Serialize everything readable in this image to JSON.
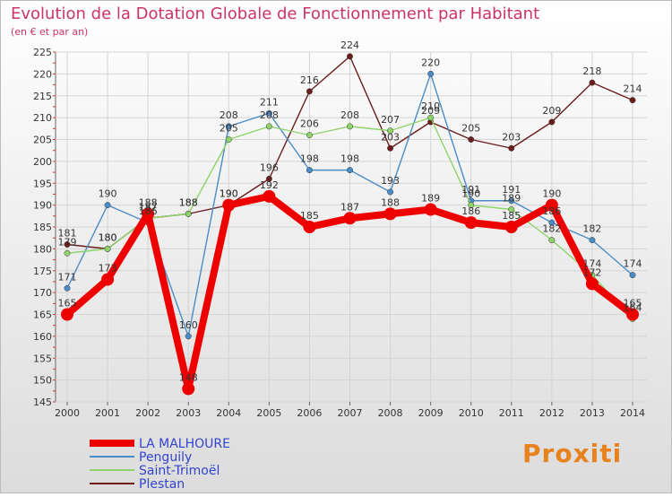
{
  "chart_data": {
    "type": "line",
    "title": "Evolution de la Dotation Globale de Fonctionnement par Habitant",
    "subtitle": "(en € et par an)",
    "xlabel": "",
    "ylabel": "",
    "ylim": [
      145,
      225
    ],
    "y_ticks": [
      145,
      150,
      155,
      160,
      165,
      170,
      175,
      180,
      185,
      190,
      195,
      200,
      205,
      210,
      215,
      220,
      225
    ],
    "categories": [
      "2000",
      "2001",
      "2002",
      "2003",
      "2004",
      "2005",
      "2006",
      "2007",
      "2008",
      "2009",
      "2010",
      "2011",
      "2012",
      "2013",
      "2014"
    ],
    "grid": true,
    "legend_position": "bottom-left",
    "series": [
      {
        "name": "Plestan",
        "color": "#6b1c1c",
        "values": [
          181,
          180,
          187,
          188,
          190,
          196,
          216,
          224,
          203,
          209,
          205,
          203,
          209,
          218,
          214
        ]
      },
      {
        "name": "Penguily",
        "color": "#4a8cc7",
        "values": [
          171,
          190,
          186,
          160,
          208,
          211,
          198,
          198,
          193,
          220,
          191,
          191,
          186,
          182,
          174
        ]
      },
      {
        "name": "Saint-Trimoël",
        "color": "#8fd46a",
        "values": [
          179,
          180,
          187,
          188,
          205,
          208,
          206,
          208,
          207,
          210,
          190,
          189,
          182,
          174,
          164
        ]
      },
      {
        "name": "LA MALHOURE",
        "color": "#ee0000",
        "values": [
          165,
          173,
          188,
          148,
          190,
          192,
          185,
          187,
          188,
          189,
          186,
          185,
          190,
          172,
          165
        ]
      }
    ],
    "legend": [
      "LA MALHOURE",
      "Penguily",
      "Saint-Trimoël",
      "Plestan"
    ]
  },
  "logo_text": "Proxiti"
}
